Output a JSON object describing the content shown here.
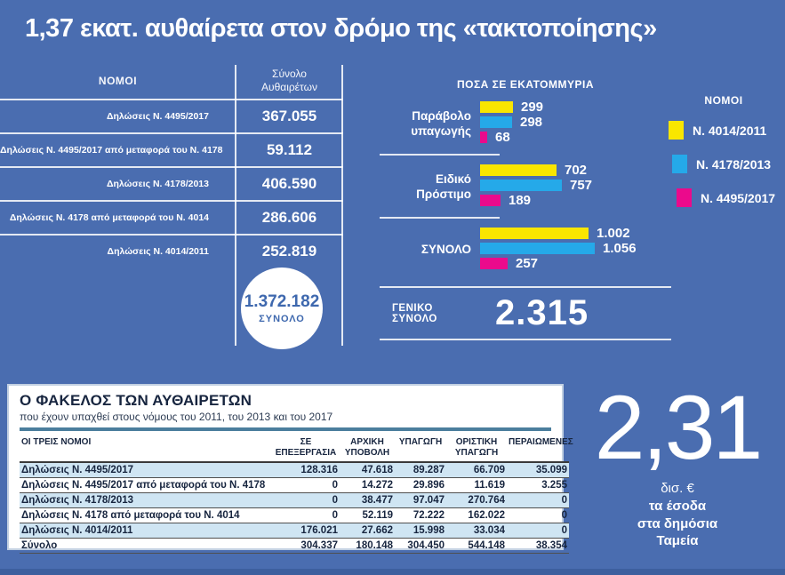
{
  "title": "1,37 εκατ. αυθαίρετα στον δρόμο της «τακτοποίησης»",
  "colors": {
    "background": "#4a6db0",
    "footer_strip": "#3d5f9e",
    "yellow": "#f9e600",
    "cyan": "#25a9e9",
    "magenta": "#eb0a8c",
    "panel_stripe": "#cfe5f3",
    "panel_rule": "#4b7e9d",
    "panel_text": "#17253f",
    "circle_text": "#3e68ae"
  },
  "declarations_table": {
    "col1_header": "ΝΟΜΟΙ",
    "col2_header": "Σύνολο Αυθαιρέτων",
    "rows": [
      {
        "label": "Δηλώσεις Ν. 4495/2017",
        "value": "367.055"
      },
      {
        "label": "Δηλώσεις Ν. 4495/2017 από μεταφορά του Ν. 4178",
        "value": "59.112"
      },
      {
        "label": "Δηλώσεις Ν. 4178/2013",
        "value": "406.590"
      },
      {
        "label": "Δηλώσεις Ν. 4178 από μεταφορά του Ν. 4014",
        "value": "286.606"
      },
      {
        "label": "Δηλώσεις Ν. 4014/2011",
        "value": "252.819"
      }
    ],
    "total": {
      "value": "1.372.182",
      "label": "ΣΥΝΟΛΟ"
    }
  },
  "chart_data": {
    "type": "bar",
    "orientation": "horizontal",
    "title": "ΠΟΣΑ ΣΕ ΕΚΑΤΟΜΜΥΡΙΑ",
    "categories": [
      "Παράβολο υπαγωγής",
      "Ειδικό Πρόστιμο",
      "ΣΥΝΟΛΟ"
    ],
    "series": [
      {
        "name": "Ν. 4014/2011",
        "color_key": "yellow",
        "values": [
          299,
          702,
          1002
        ],
        "labels": [
          "299",
          "702",
          "1.002"
        ]
      },
      {
        "name": "Ν. 4178/2013",
        "color_key": "cyan",
        "values": [
          298,
          757,
          1056
        ],
        "labels": [
          "298",
          "757",
          "1.056"
        ]
      },
      {
        "name": "Ν. 4495/2017",
        "color_key": "magenta",
        "values": [
          68,
          189,
          257
        ],
        "labels": [
          "68",
          "189",
          "257"
        ]
      }
    ],
    "xmax": 1056,
    "legend_position": "right",
    "grid": false,
    "grand_total": {
      "label": "ΓΕΝΙΚΟ ΣΥΝΟΛΟ",
      "value": "2.315"
    }
  },
  "legend": {
    "title": "ΝΟΜΟΙ",
    "items": [
      {
        "label": "Ν. 4014/2011",
        "color_key": "yellow"
      },
      {
        "label": "Ν. 4178/2013",
        "color_key": "cyan"
      },
      {
        "label": "Ν. 4495/2017",
        "color_key": "magenta"
      }
    ]
  },
  "files_panel": {
    "title": "Ο ΦΑΚΕΛΟΣ ΤΩΝ ΑΥΘΑΙΡΕΤΩΝ",
    "subtitle": "που έχουν υπαχθεί στους νόμους του 2011, του 2013 και του 2017",
    "columns": [
      "ΟΙ ΤΡΕΙΣ ΝΟΜΟΙ",
      "ΣΕ ΕΠΕΞΕΡΓΑΣΙΑ",
      "ΑΡΧΙΚΗ ΥΠΟΒΟΛΗ",
      "ΥΠΑΓΩΓΗ",
      "ΟΡΙΣΤΙΚΗ ΥΠΑΓΩΓΗ",
      "ΠΕΡΑΙΩΜΕΝΕΣ"
    ],
    "rows": [
      [
        "Δηλώσεις Ν. 4495/2017",
        "128.316",
        "47.618",
        "89.287",
        "66.709",
        "35.099"
      ],
      [
        "Δηλώσεις Ν. 4495/2017 από μεταφορά του Ν. 4178",
        "0",
        "14.272",
        "29.896",
        "11.619",
        "3.255"
      ],
      [
        "Δηλώσεις Ν. 4178/2013",
        "0",
        "38.477",
        "97.047",
        "270.764",
        "0"
      ],
      [
        "Δηλώσεις Ν. 4178 από μεταφορά του Ν. 4014",
        "0",
        "52.119",
        "72.222",
        "162.022",
        "0"
      ],
      [
        "Δηλώσεις Ν. 4014/2011",
        "176.021",
        "27.662",
        "15.998",
        "33.034",
        "0"
      ]
    ],
    "total_row": [
      "Σύνολο",
      "304.337",
      "180.148",
      "304.450",
      "544.148",
      "38.354"
    ]
  },
  "revenue_highlight": {
    "value": "2,31",
    "unit": "δισ. €",
    "caption_lines": [
      "τα έσοδα",
      "στα δημόσια",
      "Ταμεία"
    ]
  }
}
